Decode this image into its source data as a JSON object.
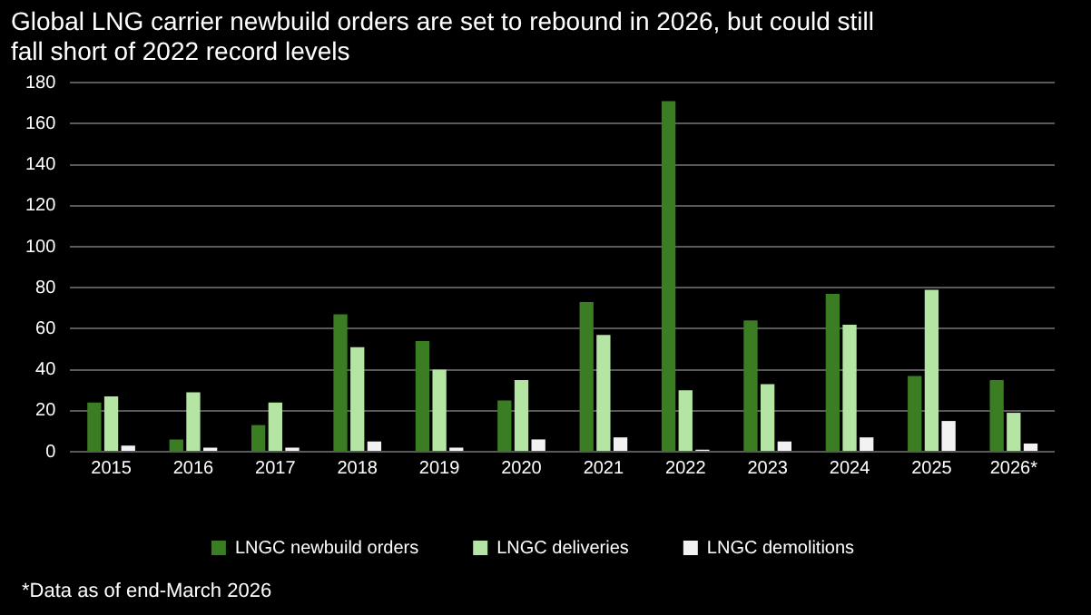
{
  "chart_data": {
    "type": "bar",
    "title": "Global LNG carrier newbuild orders are set to rebound in 2026, but could still fall short of 2022 record levels",
    "categories": [
      "2015",
      "2016",
      "2017",
      "2018",
      "2019",
      "2020",
      "2021",
      "2022",
      "2023",
      "2024",
      "2025",
      "2026*"
    ],
    "series": [
      {
        "name": "LNGC newbuild orders",
        "color": "#3a7d22",
        "values": [
          24,
          6,
          13,
          67,
          54,
          25,
          73,
          171,
          64,
          77,
          37,
          35
        ]
      },
      {
        "name": "LNGC deliveries",
        "color": "#b4e5a2",
        "values": [
          27,
          29,
          24,
          51,
          40,
          35,
          57,
          30,
          33,
          62,
          79,
          19
        ]
      },
      {
        "name": "LNGC demolitions",
        "color": "#f2f2f2",
        "values": [
          3,
          2,
          2,
          5,
          2,
          6,
          7,
          1,
          5,
          7,
          15,
          4
        ]
      }
    ],
    "ylim": [
      0,
      180
    ],
    "yticks": [
      0,
      20,
      40,
      60,
      80,
      100,
      120,
      140,
      160,
      180
    ],
    "grid": "y",
    "legend": "bottom",
    "annotations": [
      "*Data as of end-March 2026"
    ]
  }
}
